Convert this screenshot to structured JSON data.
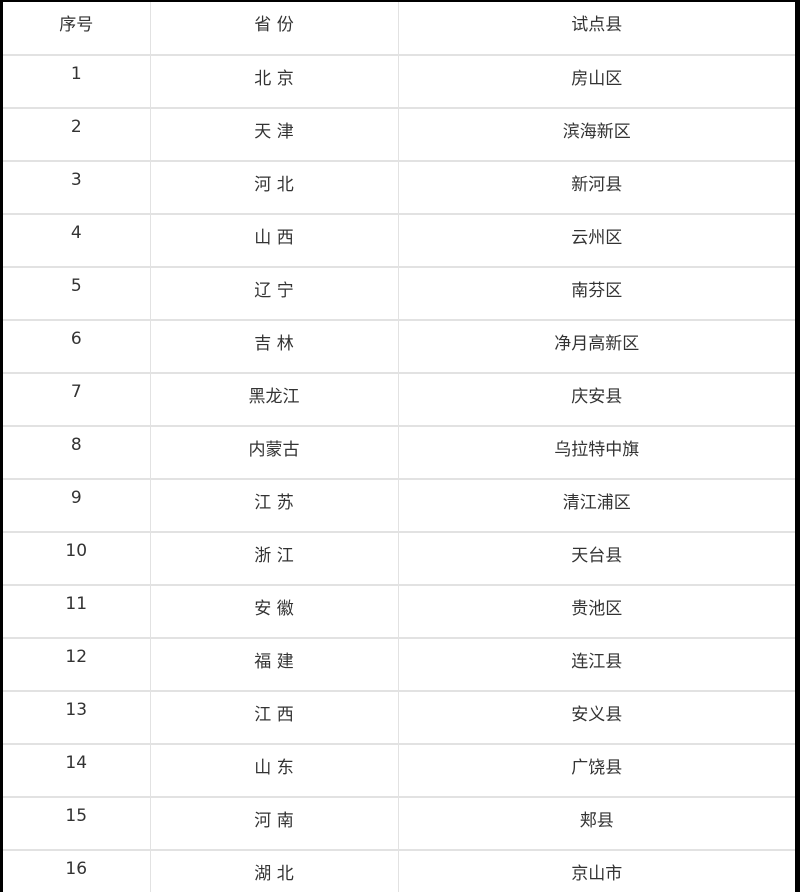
{
  "table": {
    "headers": [
      "序号",
      "省 份",
      "试点县"
    ],
    "rows": [
      [
        "1",
        "北 京",
        "房山区"
      ],
      [
        "2",
        "天 津",
        "滨海新区"
      ],
      [
        "3",
        "河 北",
        "新河县"
      ],
      [
        "4",
        "山 西",
        "云州区"
      ],
      [
        "5",
        "辽 宁",
        "南芬区"
      ],
      [
        "6",
        "吉 林",
        "净月高新区"
      ],
      [
        "7",
        "黑龙江",
        "庆安县"
      ],
      [
        "8",
        "内蒙古",
        "乌拉特中旗"
      ],
      [
        "9",
        "江 苏",
        "清江浦区"
      ],
      [
        "10",
        "浙 江",
        "天台县"
      ],
      [
        "11",
        "安 徽",
        "贵池区"
      ],
      [
        "12",
        "福 建",
        "连江县"
      ],
      [
        "13",
        "江 西",
        "安义县"
      ],
      [
        "14",
        "山 东",
        "广饶县"
      ],
      [
        "15",
        "河 南",
        "郏县"
      ],
      [
        "16",
        "湖 北",
        "京山市"
      ]
    ]
  }
}
